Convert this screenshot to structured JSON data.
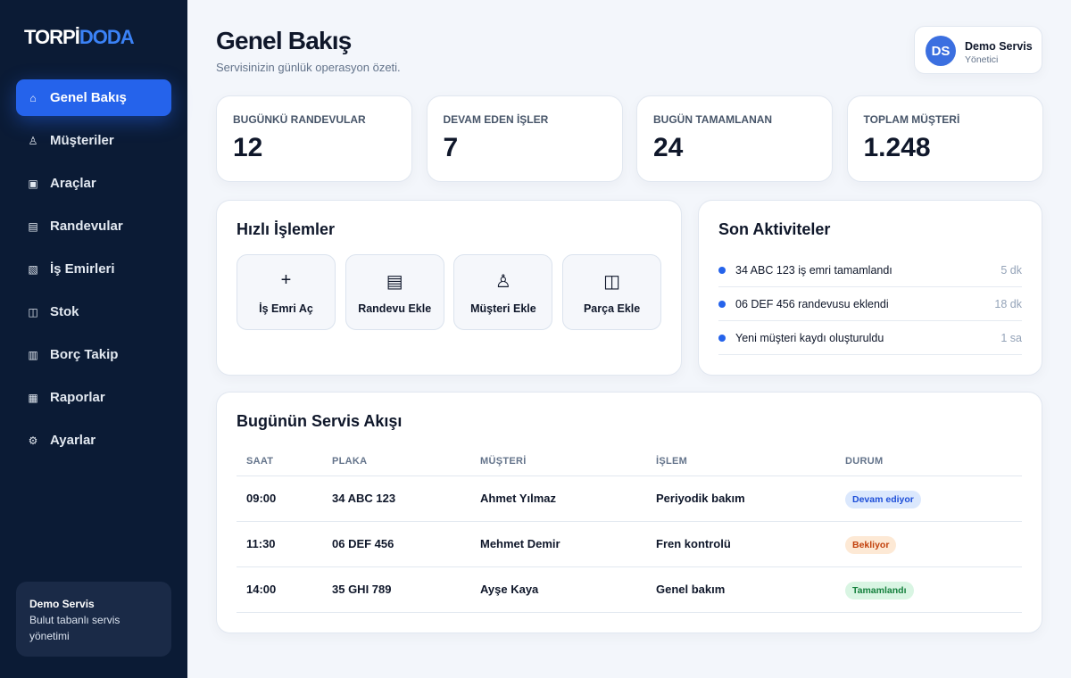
{
  "sidebar": {
    "logo": {
      "part1": "TORPİ",
      "part2": "DODA"
    },
    "nav": [
      {
        "icon": "⌂",
        "label": "Genel Bakış"
      },
      {
        "icon": "♙",
        "label": "Müşteriler"
      },
      {
        "icon": "▣",
        "label": "Araçlar"
      },
      {
        "icon": "▤",
        "label": "Randevular"
      },
      {
        "icon": "▧",
        "label": "İş Emirleri"
      },
      {
        "icon": "◫",
        "label": "Stok"
      },
      {
        "icon": "▥",
        "label": "Borç Takip"
      },
      {
        "icon": "▦",
        "label": "Raporlar"
      },
      {
        "icon": "⚙",
        "label": "Ayarlar"
      }
    ],
    "footer": {
      "title": "Demo Servis",
      "text": "Bulut tabanlı servis yönetimi"
    }
  },
  "header": {
    "title": "Genel Bakış",
    "subtitle": "Servisinizin günlük operasyon özeti.",
    "user": {
      "initials": "DS",
      "name": "Demo Servis",
      "role": "Yönetici"
    }
  },
  "stats": [
    {
      "label": "BUGÜNKÜ RANDEVULAR",
      "value": "12"
    },
    {
      "label": "DEVAM EDEN İŞLER",
      "value": "7"
    },
    {
      "label": "BUGÜN TAMAMLANAN",
      "value": "24"
    },
    {
      "label": "TOPLAM MÜŞTERİ",
      "value": "1.248"
    }
  ],
  "quick_actions": {
    "title": "Hızlı İşlemler",
    "items": [
      {
        "icon": "+",
        "label": "İş Emri Aç"
      },
      {
        "icon": "▤",
        "label": "Randevu Ekle"
      },
      {
        "icon": "♙",
        "label": "Müşteri Ekle"
      },
      {
        "icon": "◫",
        "label": "Parça Ekle"
      }
    ]
  },
  "activities": {
    "title": "Son Aktiviteler",
    "items": [
      {
        "text": "34 ABC 123 iş emri tamamlandı",
        "time": "5 dk"
      },
      {
        "text": "06 DEF 456 randevusu eklendi",
        "time": "18 dk"
      },
      {
        "text": "Yeni müşteri kaydı oluşturuldu",
        "time": "1 sa"
      }
    ]
  },
  "schedule": {
    "title": "Bugünün Servis Akışı",
    "columns": [
      "SAAT",
      "PLAKA",
      "MÜŞTERİ",
      "İŞLEM",
      "DURUM"
    ],
    "rows": [
      [
        "09:00",
        "34 ABC 123",
        "Ahmet Yılmaz",
        "Periyodik bakım",
        "Devam ediyor"
      ],
      [
        "11:30",
        "06 DEF 456",
        "Mehmet Demir",
        "Fren kontrolü",
        "Bekliyor"
      ],
      [
        "14:00",
        "35 GHI 789",
        "Ayşe Kaya",
        "Genel bakım",
        "Tamamlandı"
      ]
    ]
  }
}
